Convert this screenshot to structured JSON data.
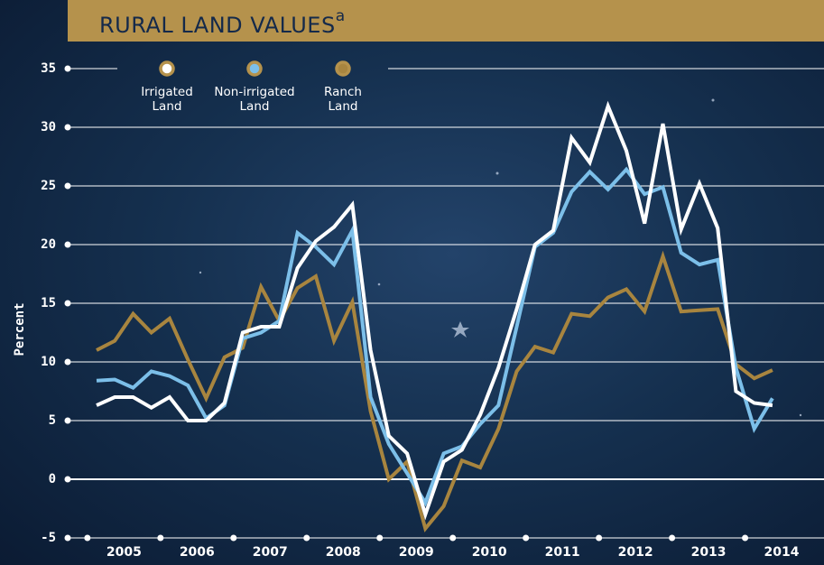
{
  "chart_data": {
    "type": "line",
    "title": "RURAL LAND VALUES",
    "title_note": "a",
    "y_label": "Percent",
    "x": [
      2005.125,
      2005.375,
      2005.625,
      2005.875,
      2006.125,
      2006.375,
      2006.625,
      2006.875,
      2007.125,
      2007.375,
      2007.625,
      2007.875,
      2008.125,
      2008.375,
      2008.625,
      2008.875,
      2009.125,
      2009.375,
      2009.625,
      2009.875,
      2010.125,
      2010.375,
      2010.625,
      2010.875,
      2011.125,
      2011.375,
      2011.625,
      2011.875,
      2012.125,
      2012.375,
      2012.625,
      2012.875,
      2013.125,
      2013.375,
      2013.625,
      2013.875,
      2014.125,
      2014.375
    ],
    "series": [
      {
        "name": "Irrigated Land",
        "color": "#ffffff",
        "values": [
          6.3,
          7,
          7,
          6.1,
          7,
          5,
          5,
          6.5,
          12.5,
          13,
          13,
          18,
          20.3,
          21.5,
          23.4,
          11,
          3.7,
          2.2,
          -3,
          1.5,
          2.5,
          5.5,
          9.5,
          14.5,
          20,
          21.2,
          29.1,
          27,
          31.8,
          28,
          21.8,
          30.3,
          21.3,
          25.2,
          21.4,
          7.5,
          6.5,
          6.3
        ]
      },
      {
        "name": "Non-irrigated Land",
        "color": "#7cbfe9",
        "values": [
          8.4,
          8.5,
          7.8,
          9.2,
          8.8,
          8,
          5.2,
          6.3,
          12,
          12.5,
          13.5,
          21,
          19.8,
          18.3,
          21.2,
          7,
          3,
          0.5,
          -2,
          2.2,
          2.8,
          4.7,
          6.3,
          13,
          19.8,
          21,
          24.5,
          26.2,
          24.7,
          26.4,
          24.3,
          24.9,
          19.3,
          18.3,
          18.7,
          9.5,
          4.3,
          6.9
        ]
      },
      {
        "name": "Ranch Land",
        "color": "#a8853f",
        "values": [
          11,
          11.8,
          14.1,
          12.5,
          13.7,
          10.2,
          6.9,
          10.4,
          11.2,
          16.4,
          13.5,
          16.3,
          17.3,
          11.8,
          15.1,
          5.8,
          0,
          1.5,
          -4.2,
          -2.3,
          1.6,
          1,
          4.3,
          9.2,
          11.3,
          10.8,
          14.1,
          13.9,
          15.5,
          16.2,
          14.3,
          19,
          14.3,
          14.4,
          14.5,
          9.8,
          8.6,
          9.3
        ]
      }
    ],
    "legend_marker_ring": "#b5924c",
    "xlim": [
      2004.73,
      2015.08
    ],
    "xticks": [
      {
        "value": 2005.5,
        "label": "2005"
      },
      {
        "value": 2006.5,
        "label": "2006"
      },
      {
        "value": 2007.5,
        "label": "2007"
      },
      {
        "value": 2008.5,
        "label": "2008"
      },
      {
        "value": 2009.5,
        "label": "2009"
      },
      {
        "value": 2010.5,
        "label": "2010"
      },
      {
        "value": 2011.5,
        "label": "2011"
      },
      {
        "value": 2012.5,
        "label": "2012"
      },
      {
        "value": 2013.5,
        "label": "2013"
      },
      {
        "value": 2014.5,
        "label": "2014"
      }
    ],
    "ylim": [
      -5,
      35
    ],
    "yticks": [
      -5,
      0,
      5,
      10,
      15,
      20,
      25,
      30,
      35
    ],
    "grid": true
  }
}
